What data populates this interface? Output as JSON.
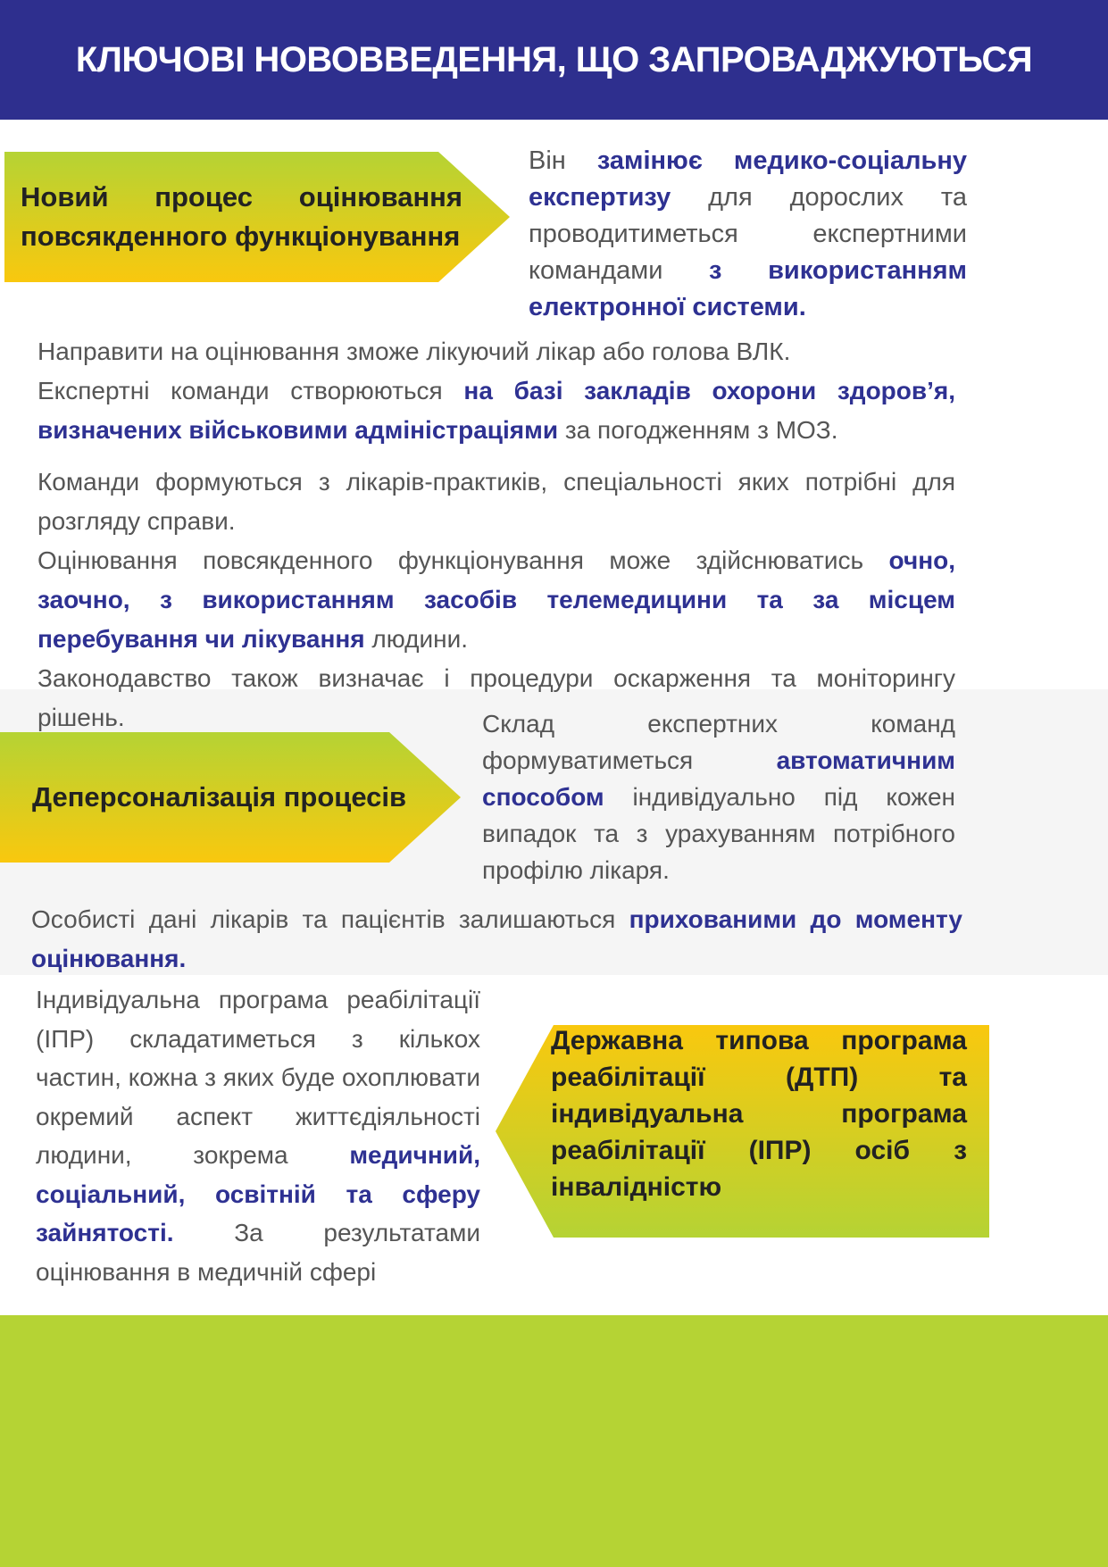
{
  "header": {
    "title": "КЛЮЧОВІ НОВОВВЕДЕННЯ, ЩО ЗАПРОВАДЖУЮТЬСЯ"
  },
  "colors": {
    "header_bg": "#2e2f8e",
    "accent_text": "#2e3192",
    "green": "#b5d334",
    "yellow": "#f9c80e",
    "body_text": "#555555"
  },
  "section1": {
    "arrow_label": "Новий процес оцінювання повсякденного функціонування",
    "side_text": [
      {
        "text": "Він ",
        "em": false
      },
      {
        "text": "замінює медико-соціальну експертизу",
        "em": true
      },
      {
        "text": " для дорослих та проводитиметься експертними командами ",
        "em": false
      },
      {
        "text": "з використанням електронної системи.",
        "em": true
      }
    ],
    "paragraphs": [
      [
        {
          "text": "Направити на оцінювання зможе лікуючий лікар або голова ВЛК.",
          "em": false
        }
      ],
      [
        {
          "text": "Експертні команди створюються ",
          "em": false
        },
        {
          "text": "на базі закладів охорони здоров’я, визначених військовими адміністраціями",
          "em": true
        },
        {
          "text": " за погодженням з МОЗ.",
          "em": false
        }
      ],
      [
        {
          "text": "Команди формуються з лікарів-практиків, спеціальності яких потрібні для розгляду справи.",
          "em": false
        }
      ],
      [
        {
          "text": "Оцінювання повсякденного функціонування може здійснюватись ",
          "em": false
        },
        {
          "text": "очно, заочно, з використанням засобів телемедицини та за місцем перебування чи лікування",
          "em": true
        },
        {
          "text": " людини.",
          "em": false
        }
      ],
      [
        {
          "text": "Законодавство також визначає і процедури оскарження та моніторингу рішень.",
          "em": false
        }
      ]
    ]
  },
  "section2": {
    "arrow_label": "Деперсоналізація процесів",
    "side_text": [
      {
        "text": "Склад експертних команд формуватиметься ",
        "em": false
      },
      {
        "text": "автоматичним способом",
        "em": true
      },
      {
        "text": " індивідуально під кожен випадок та з урахуванням потрібного профілю лікаря.",
        "em": false
      }
    ],
    "paragraph": [
      {
        "text": "Особисті дані лікарів та пацієнтів залишаються ",
        "em": false
      },
      {
        "text": "прихованими до моменту оцінювання.",
        "em": true
      }
    ]
  },
  "section3": {
    "arrow_label": "Державна типова програма реабілітації (ДТП) та індивідуальна програма реабілітації (ІПР) осіб з інвалідністю",
    "side_text": [
      {
        "text": "Індивідуальна програма реабілітації (ІПР) складатиметься з кількох частин, кожна з яких буде охоплювати окремий аспект життєдіяльності людини, зокрема ",
        "em": false
      },
      {
        "text": "медичний, соціальний, освітній та сферу зайнятості.",
        "em": true
      },
      {
        "text": " За результатами оцінювання в медичній сфері",
        "em": false
      }
    ]
  }
}
